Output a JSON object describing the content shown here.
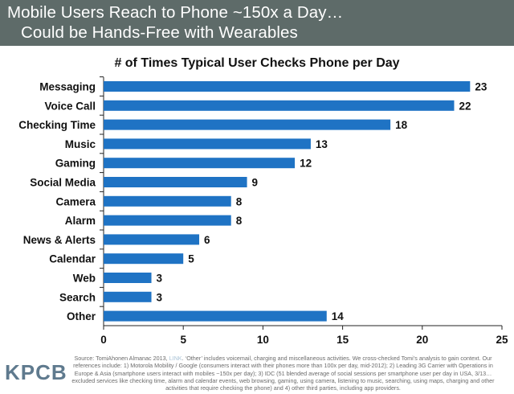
{
  "header": {
    "line1": "Mobile Users Reach to Phone ~150x a Day…",
    "line2": "Could be Hands-Free with Wearables"
  },
  "logo": "KPCB",
  "source": {
    "text_before": "Source: TomiAhonen Almanac 2013,",
    "link_text": "LINK",
    "text_after": ". ‘Other’ includes voicemail, charging and miscellaneous activities. We cross-checked Tomi’s analysis to gain context. Our references include: 1) Motorola Mobility / Google (consumers interact with their phones more than 100x per day, mid-2012); 2) Leading 3G Carrier with Operations in Europe & Asia (smartphone users interact with mobiles ~150x per day); 3) IDC (51 blended average of social sessions per smartphone user per day in USA, 3/13…excluded services like checking time, alarm and calendar events, web browsing, gaming, using camera, listening to music, searching, using maps, charging and other activities that require checking the phone) and 4) other third parties, including app providers."
  },
  "colors": {
    "bar": "#1f73c4",
    "header_bg": "#5e6b69"
  },
  "chart_data": {
    "type": "bar",
    "orientation": "horizontal",
    "title": "# of Times Typical User Checks Phone per Day",
    "categories": [
      "Messaging",
      "Voice Call",
      "Checking Time",
      "Music",
      "Gaming",
      "Social Media",
      "Camera",
      "Alarm",
      "News & Alerts",
      "Calendar",
      "Web",
      "Search",
      "Other"
    ],
    "values": [
      23,
      22,
      18,
      13,
      12,
      9,
      8,
      8,
      6,
      5,
      3,
      3,
      14
    ],
    "xlim": [
      0,
      25
    ],
    "xticks": [
      0,
      5,
      10,
      15,
      20,
      25
    ],
    "grid": false,
    "legend": "none"
  }
}
